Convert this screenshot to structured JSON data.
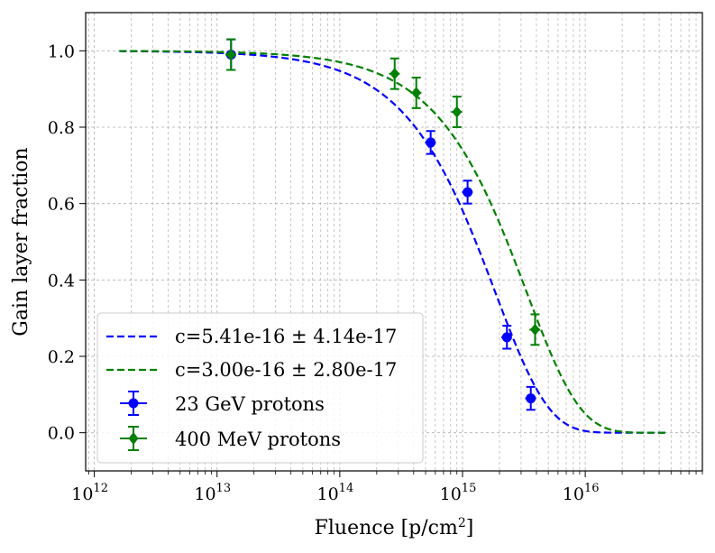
{
  "chart_data": {
    "type": "scatter",
    "xlabel": "Fluence [p/cm²]",
    "ylabel": "Gain layer fraction",
    "xscale": "log",
    "xlim": [
      850000000000.0,
      9e+16
    ],
    "ylim": [
      -0.1,
      1.1
    ],
    "grid": true,
    "legend_position": "lower-left",
    "x_ticks": [
      {
        "value": 1000000000000.0,
        "label": "10",
        "exp": "12"
      },
      {
        "value": 10000000000000.0,
        "label": "10",
        "exp": "13"
      },
      {
        "value": 100000000000000.0,
        "label": "10",
        "exp": "14"
      },
      {
        "value": 1000000000000000.0,
        "label": "10",
        "exp": "15"
      },
      {
        "value": 1e+16,
        "label": "10",
        "exp": "16"
      }
    ],
    "y_ticks": [
      {
        "value": 0.0,
        "label": "0.0"
      },
      {
        "value": 0.2,
        "label": "0.2"
      },
      {
        "value": 0.4,
        "label": "0.4"
      },
      {
        "value": 0.6,
        "label": "0.6"
      },
      {
        "value": 0.8,
        "label": "0.8"
      },
      {
        "value": 1.0,
        "label": "1.0"
      }
    ],
    "fits": [
      {
        "name": "c=5.41e-16 ± 4.14e-17",
        "c": 5.41e-16,
        "color": "#0000ff",
        "x_range": [
          1600000000000.0,
          4.7e+16
        ]
      },
      {
        "name": "c=3.00e-16 ± 2.80e-17",
        "c": 3e-16,
        "color": "#008000",
        "x_range": [
          1600000000000.0,
          4.7e+16
        ]
      }
    ],
    "series": [
      {
        "name": "23 GeV protons",
        "color": "#0000ff",
        "marker": "circle",
        "points": [
          {
            "x": 13000000000000.0,
            "y": 0.99,
            "yerr": 0.04,
            "xerr": 0.1
          },
          {
            "x": 550000000000000.0,
            "y": 0.76,
            "yerr": 0.03,
            "xerr": 0.1
          },
          {
            "x": 1100000000000000.0,
            "y": 0.63,
            "yerr": 0.03,
            "xerr": 0.1
          },
          {
            "x": 2300000000000000.0,
            "y": 0.25,
            "yerr": 0.03,
            "xerr": 0.1
          },
          {
            "x": 3600000000000000.0,
            "y": 0.09,
            "yerr": 0.03,
            "xerr": 0.1
          }
        ]
      },
      {
        "name": "400 MeV protons",
        "color": "#008000",
        "marker": "diamond",
        "points": [
          {
            "x": 13000000000000.0,
            "y": 0.99,
            "yerr": 0.04,
            "xerr": 0.1
          },
          {
            "x": 280000000000000.0,
            "y": 0.94,
            "yerr": 0.04,
            "xerr": 0.1
          },
          {
            "x": 420000000000000.0,
            "y": 0.89,
            "yerr": 0.04,
            "xerr": 0.1
          },
          {
            "x": 900000000000000.0,
            "y": 0.84,
            "yerr": 0.04,
            "xerr": 0.1
          },
          {
            "x": 3900000000000000.0,
            "y": 0.27,
            "yerr": 0.04,
            "xerr": 0.1
          }
        ]
      }
    ]
  }
}
